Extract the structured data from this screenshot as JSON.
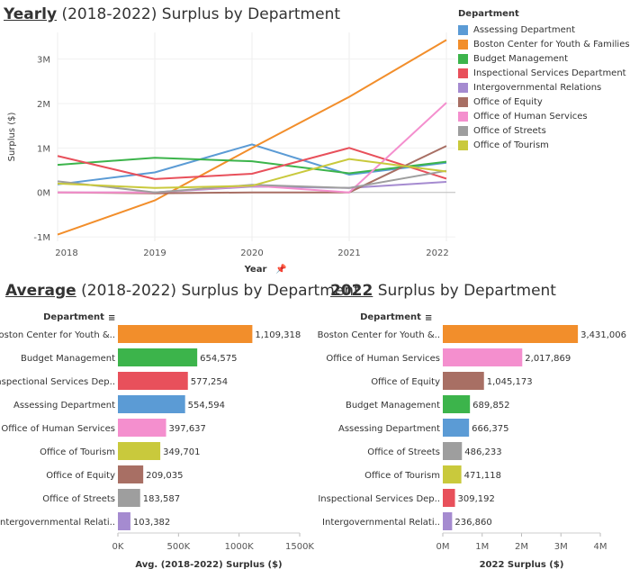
{
  "titles": {
    "yearly_bold": "Yearly",
    "yearly_rest": " (2018-2022) Surplus by Department",
    "avg_bold": "Average",
    "avg_rest": " (2018-2022) Surplus by Department",
    "y2022_bold": "2022",
    "y2022_rest": " Surplus by Department"
  },
  "legend": {
    "title": "Department",
    "items": [
      {
        "label": "Assessing Department",
        "color": "#5b9bd5"
      },
      {
        "label": "Boston Center for Youth & Families",
        "color": "#f28e2b"
      },
      {
        "label": "Budget Management",
        "color": "#3cb44b"
      },
      {
        "label": "Inspectional Services Department",
        "color": "#e8505b"
      },
      {
        "label": "Intergovernmental Relations",
        "color": "#a58bd0"
      },
      {
        "label": "Office of Equity",
        "color": "#a86f64"
      },
      {
        "label": "Office of Human Services",
        "color": "#f48fce"
      },
      {
        "label": "Office of Streets",
        "color": "#9e9e9e"
      },
      {
        "label": "Office of Tourism",
        "color": "#c9c93c"
      }
    ]
  },
  "chart_data": [
    {
      "type": "line",
      "title": "Yearly (2018-2022) Surplus by Department",
      "xlabel": "Year",
      "ylabel": "Surplus ($)",
      "x": [
        2018,
        2019,
        2020,
        2021,
        2022
      ],
      "x_ticks": [
        "2018",
        "2019",
        "2020",
        "2021",
        "2022"
      ],
      "y_ticks": [
        "-1M",
        "0M",
        "1M",
        "2M",
        "3M"
      ],
      "ylim": [
        -1100000,
        3600000
      ],
      "series": [
        {
          "name": "Assessing Department",
          "color": "#5b9bd5",
          "values": [
            180000,
            450000,
            1080000,
            400000,
            666375
          ]
        },
        {
          "name": "Boston Center for Youth & Families",
          "color": "#f28e2b",
          "values": [
            -950000,
            -180000,
            1000000,
            2150000,
            3431006
          ]
        },
        {
          "name": "Budget Management",
          "color": "#3cb44b",
          "values": [
            620000,
            780000,
            700000,
            430000,
            689852
          ]
        },
        {
          "name": "Inspectional Services Department",
          "color": "#e8505b",
          "values": [
            820000,
            300000,
            420000,
            1000000,
            309192
          ]
        },
        {
          "name": "Intergovernmental Relations",
          "color": "#a58bd0",
          "values": [
            0,
            0,
            130000,
            100000,
            236860
          ]
        },
        {
          "name": "Office of Equity",
          "color": "#a86f64",
          "values": [
            0,
            -20000,
            0,
            0,
            1045173
          ]
        },
        {
          "name": "Office of Human Services",
          "color": "#f48fce",
          "values": [
            0,
            0,
            150000,
            0,
            2017869
          ]
        },
        {
          "name": "Office of Streets",
          "color": "#9e9e9e",
          "values": [
            250000,
            0,
            170000,
            100000,
            486233
          ]
        },
        {
          "name": "Office of Tourism",
          "color": "#c9c93c",
          "values": [
            200000,
            100000,
            150000,
            750000,
            471118
          ]
        }
      ]
    },
    {
      "type": "bar",
      "orientation": "horizontal",
      "title": "Average (2018-2022) Surplus by Department",
      "header": "Department",
      "xlabel": "Avg. (2018-2022) Surplus ($)",
      "x_ticks": [
        "0K",
        "500K",
        "1000K",
        "1500K"
      ],
      "xlim": [
        0,
        1500000
      ],
      "categories": [
        "Boston Center for Youth &..",
        "Budget Management",
        "Inspectional Services Dep..",
        "Assessing Department",
        "Office of Human Services",
        "Office of Tourism",
        "Office of Equity",
        "Office of Streets",
        "Intergovernmental Relati.."
      ],
      "values": [
        1109318,
        654575,
        577254,
        554594,
        397637,
        349701,
        209035,
        183587,
        103382
      ],
      "value_labels": [
        "1,109,318",
        "654,575",
        "577,254",
        "554,594",
        "397,637",
        "349,701",
        "209,035",
        "183,587",
        "103,382"
      ],
      "colors": [
        "#f28e2b",
        "#3cb44b",
        "#e8505b",
        "#5b9bd5",
        "#f48fce",
        "#c9c93c",
        "#a86f64",
        "#9e9e9e",
        "#a58bd0"
      ]
    },
    {
      "type": "bar",
      "orientation": "horizontal",
      "title": "2022 Surplus by Department",
      "header": "Department",
      "xlabel": "2022 Surplus ($)",
      "x_ticks": [
        "0M",
        "1M",
        "2M",
        "3M",
        "4M"
      ],
      "xlim": [
        0,
        4000000
      ],
      "categories": [
        "Boston Center for Youth &..",
        "Office of Human Services",
        "Office of Equity",
        "Budget Management",
        "Assessing Department",
        "Office of Streets",
        "Office of Tourism",
        "Inspectional Services Dep..",
        "Intergovernmental Relati.."
      ],
      "values": [
        3431006,
        2017869,
        1045173,
        689852,
        666375,
        486233,
        471118,
        309192,
        236860
      ],
      "value_labels": [
        "3,431,006",
        "2,017,869",
        "1,045,173",
        "689,852",
        "666,375",
        "486,233",
        "471,118",
        "309,192",
        "236,860"
      ],
      "colors": [
        "#f28e2b",
        "#f48fce",
        "#a86f64",
        "#3cb44b",
        "#5b9bd5",
        "#9e9e9e",
        "#c9c93c",
        "#e8505b",
        "#a58bd0"
      ]
    }
  ]
}
